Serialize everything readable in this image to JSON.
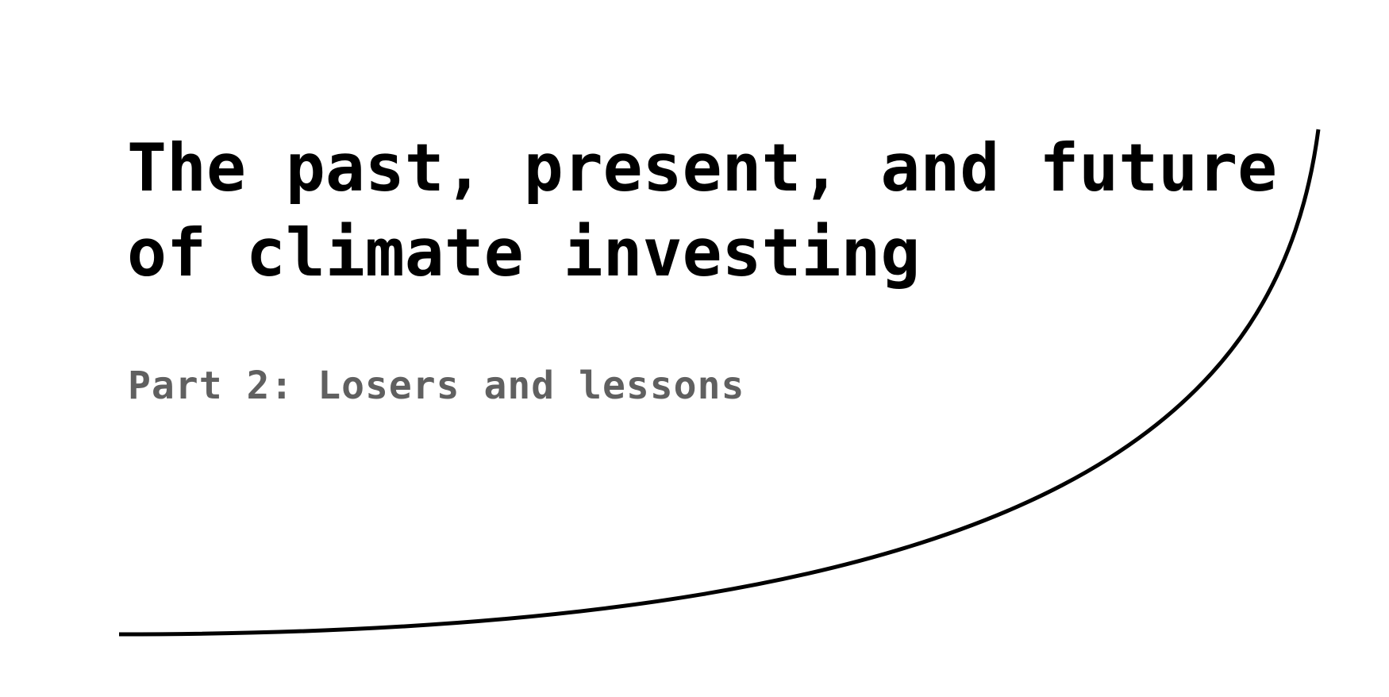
{
  "slide": {
    "title_line_1": "The past, present, and future",
    "title_line_2": "of climate investing",
    "subtitle": "Part 2: Losers and lessons"
  },
  "colors": {
    "background": "#ffffff",
    "title": "#000000",
    "subtitle": "#606060",
    "curve": "#000000"
  }
}
